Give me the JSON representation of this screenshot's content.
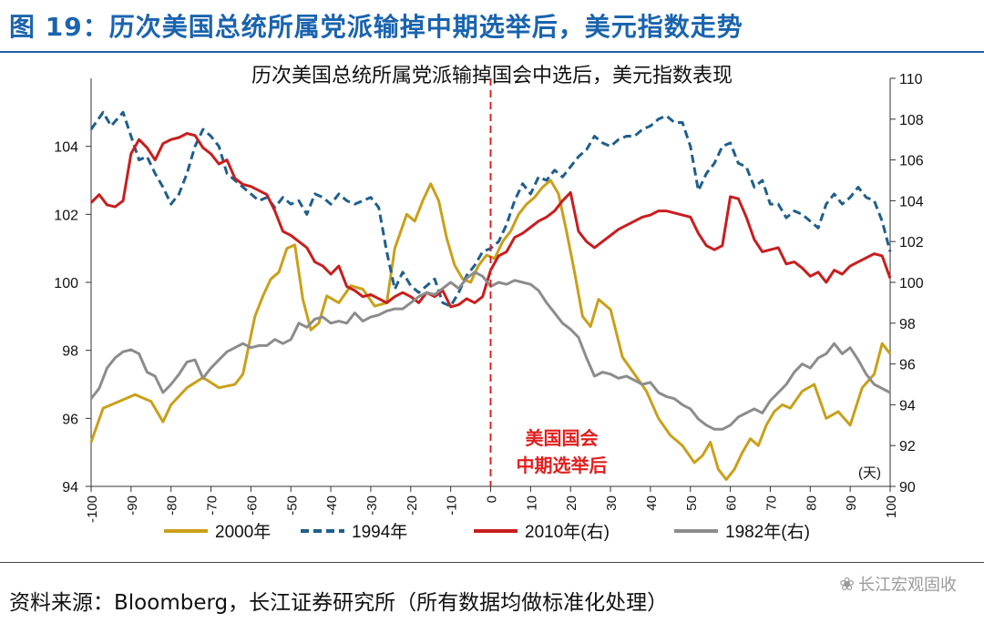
{
  "figure": {
    "label": "图 19：历次美国总统所属党派输掉中期选举后，美元指数走势",
    "source": "资料来源：Bloomberg，长江证券研究所（所有数据均做标准化处理）",
    "watermark": "长江宏观固收",
    "watermark_icon": "wechat-icon"
  },
  "chart_data": {
    "type": "line",
    "title": "历次美国总统所属党派输掉国会中选后，美元指数表现",
    "x_unit": "(天)",
    "xlim": [
      -100,
      100
    ],
    "x_ticks": [
      -100,
      -90,
      -80,
      -70,
      -60,
      -50,
      -40,
      -30,
      -20,
      -10,
      0,
      10,
      20,
      30,
      40,
      50,
      60,
      70,
      80,
      90,
      100
    ],
    "ylim_left": [
      94,
      106
    ],
    "y_ticks_left": [
      94,
      96,
      98,
      100,
      102,
      104
    ],
    "ylim_right": [
      90,
      110
    ],
    "y_ticks_right": [
      90,
      92,
      94,
      96,
      98,
      100,
      102,
      104,
      106,
      108,
      110
    ],
    "annotation": {
      "x": 0,
      "lines": [
        "美国国会",
        "中期选举后"
      ]
    },
    "series": [
      {
        "name": "2000年",
        "axis": "left",
        "color": "#c9a01a",
        "dash": "solid",
        "x": [
          -100,
          -97,
          -93,
          -89,
          -85,
          -82,
          -80,
          -76,
          -72,
          -68,
          -64,
          -62,
          -59,
          -57,
          -55,
          -53,
          -51,
          -49,
          -47,
          -45,
          -43,
          -41,
          -38,
          -35,
          -32,
          -29,
          -26,
          -24,
          -21,
          -19,
          -17,
          -15,
          -13,
          -11,
          -9,
          -7,
          -5,
          -3,
          -1,
          1,
          3,
          5,
          7,
          9,
          11,
          13,
          15,
          17,
          19,
          21,
          23,
          25,
          27,
          30,
          33,
          36,
          39,
          42,
          45,
          48,
          51,
          53,
          55,
          57,
          59,
          61,
          63,
          65,
          67,
          69,
          71,
          73,
          75,
          78,
          81,
          84,
          87,
          90,
          93,
          96,
          98,
          100
        ],
        "y": [
          95.3,
          96.3,
          96.5,
          96.7,
          96.5,
          95.9,
          96.4,
          96.9,
          97.2,
          96.9,
          97.0,
          97.3,
          99.0,
          99.6,
          100.1,
          100.3,
          101.0,
          101.1,
          99.5,
          98.6,
          98.8,
          99.6,
          99.4,
          99.9,
          99.8,
          99.3,
          99.4,
          101.0,
          102.0,
          101.8,
          102.4,
          102.9,
          102.4,
          101.3,
          100.5,
          100.1,
          100.0,
          100.5,
          100.8,
          100.7,
          101.2,
          101.5,
          102.0,
          102.3,
          102.5,
          102.8,
          103.0,
          102.6,
          101.5,
          100.3,
          99.0,
          98.7,
          99.5,
          99.2,
          97.8,
          97.3,
          96.8,
          96.0,
          95.5,
          95.2,
          94.7,
          94.9,
          95.3,
          94.5,
          94.2,
          94.5,
          95.0,
          95.4,
          95.2,
          95.8,
          96.2,
          96.4,
          96.3,
          96.8,
          97.0,
          96.0,
          96.2,
          95.8,
          96.9,
          97.3,
          98.2,
          97.9
        ]
      },
      {
        "name": "1994年",
        "axis": "left",
        "color": "#1f5f8b",
        "dash": "dashed",
        "x": [
          -100,
          -97,
          -95,
          -92,
          -90,
          -88,
          -86,
          -84,
          -82,
          -80,
          -78,
          -76,
          -74,
          -72,
          -70,
          -68,
          -66,
          -64,
          -62,
          -60,
          -58,
          -56,
          -54,
          -52,
          -50,
          -48,
          -46,
          -44,
          -42,
          -40,
          -38,
          -36,
          -34,
          -32,
          -30,
          -28,
          -26,
          -24,
          -22,
          -20,
          -18,
          -16,
          -14,
          -12,
          -10,
          -8,
          -6,
          -4,
          -2,
          0,
          2,
          4,
          6,
          8,
          10,
          12,
          14,
          16,
          18,
          20,
          22,
          24,
          26,
          28,
          30,
          32,
          34,
          36,
          38,
          40,
          42,
          44,
          46,
          48,
          50,
          52,
          54,
          56,
          58,
          60,
          62,
          64,
          66,
          68,
          70,
          72,
          74,
          76,
          78,
          80,
          82,
          84,
          86,
          88,
          90,
          92,
          94,
          96,
          98,
          100
        ],
        "y": [
          104.5,
          105.0,
          104.6,
          105.0,
          104.3,
          103.6,
          103.7,
          103.2,
          102.8,
          102.3,
          102.6,
          103.2,
          104.0,
          104.5,
          104.3,
          104.0,
          103.2,
          103.0,
          102.8,
          102.6,
          102.4,
          102.5,
          102.2,
          102.5,
          102.3,
          102.4,
          102.0,
          102.6,
          102.5,
          102.3,
          102.6,
          102.4,
          102.3,
          102.4,
          102.5,
          102.2,
          100.9,
          99.8,
          100.3,
          99.9,
          99.7,
          99.9,
          100.1,
          99.4,
          99.3,
          99.7,
          100.2,
          100.5,
          100.9,
          101.0,
          101.2,
          101.7,
          102.4,
          102.9,
          102.6,
          103.1,
          103.0,
          103.3,
          103.1,
          103.4,
          103.7,
          103.9,
          104.3,
          104.1,
          104.0,
          104.2,
          104.3,
          104.3,
          104.5,
          104.6,
          104.8,
          104.9,
          104.7,
          104.7,
          104.0,
          102.7,
          103.2,
          103.5,
          104.0,
          104.1,
          103.5,
          103.4,
          102.8,
          103.0,
          102.3,
          102.3,
          101.9,
          102.1,
          102.0,
          101.8,
          101.6,
          102.3,
          102.6,
          102.3,
          102.5,
          102.8,
          102.5,
          102.4,
          101.8,
          100.9
        ]
      },
      {
        "name": "2010年(右)",
        "axis": "right",
        "color": "#c81e1e",
        "dash": "solid",
        "x": [
          -100,
          -98,
          -96,
          -94,
          -92,
          -90,
          -88,
          -86,
          -84,
          -82,
          -80,
          -78,
          -76,
          -74,
          -72,
          -70,
          -68,
          -66,
          -64,
          -62,
          -60,
          -58,
          -56,
          -54,
          -52,
          -50,
          -48,
          -46,
          -44,
          -42,
          -40,
          -38,
          -36,
          -34,
          -32,
          -30,
          -28,
          -26,
          -24,
          -22,
          -20,
          -18,
          -16,
          -14,
          -12,
          -10,
          -8,
          -6,
          -4,
          -2,
          0,
          2,
          4,
          6,
          8,
          10,
          12,
          14,
          16,
          18,
          20,
          22,
          24,
          26,
          28,
          30,
          32,
          34,
          36,
          38,
          40,
          42,
          44,
          46,
          48,
          50,
          52,
          54,
          56,
          58,
          60,
          62,
          64,
          66,
          68,
          70,
          72,
          74,
          76,
          78,
          80,
          82,
          84,
          86,
          88,
          90,
          92,
          94,
          96,
          98,
          100
        ],
        "y": [
          103.9,
          104.3,
          103.8,
          103.7,
          104.0,
          106.3,
          107.0,
          106.6,
          106.0,
          106.8,
          107.0,
          107.1,
          107.3,
          107.2,
          106.6,
          106.3,
          105.8,
          106.0,
          105.1,
          104.8,
          104.7,
          104.5,
          104.3,
          103.5,
          102.5,
          102.3,
          102.0,
          101.7,
          101.0,
          100.8,
          100.4,
          100.8,
          99.8,
          99.6,
          99.3,
          99.4,
          99.2,
          99.0,
          99.3,
          99.5,
          99.3,
          99.0,
          99.5,
          99.3,
          99.6,
          98.8,
          98.9,
          99.2,
          99.0,
          99.3,
          100.6,
          101.3,
          101.5,
          102.2,
          102.4,
          102.7,
          103.0,
          103.2,
          103.5,
          104.0,
          104.4,
          102.5,
          102.0,
          101.7,
          102.0,
          102.3,
          102.6,
          102.8,
          103.0,
          103.2,
          103.3,
          103.5,
          103.5,
          103.4,
          103.3,
          103.2,
          102.4,
          101.8,
          101.6,
          101.8,
          104.2,
          104.1,
          103.2,
          102.1,
          101.5,
          101.6,
          101.7,
          100.9,
          101.0,
          100.7,
          100.3,
          100.5,
          100.0,
          100.6,
          100.4,
          100.8,
          101.0,
          101.2,
          101.4,
          101.3,
          100.2
        ]
      },
      {
        "name": "1982年(右)",
        "axis": "right",
        "color": "#8c8c8c",
        "dash": "solid",
        "x": [
          -100,
          -98,
          -96,
          -94,
          -92,
          -90,
          -88,
          -86,
          -84,
          -82,
          -80,
          -78,
          -76,
          -74,
          -72,
          -70,
          -68,
          -66,
          -64,
          -62,
          -60,
          -58,
          -56,
          -54,
          -52,
          -50,
          -48,
          -46,
          -44,
          -42,
          -40,
          -38,
          -36,
          -34,
          -32,
          -30,
          -28,
          -26,
          -24,
          -22,
          -20,
          -18,
          -16,
          -14,
          -12,
          -10,
          -8,
          -6,
          -4,
          -2,
          0,
          2,
          4,
          6,
          8,
          10,
          12,
          14,
          16,
          18,
          20,
          22,
          24,
          26,
          28,
          30,
          32,
          34,
          36,
          38,
          40,
          42,
          44,
          46,
          48,
          50,
          52,
          54,
          56,
          58,
          60,
          62,
          64,
          66,
          68,
          70,
          72,
          74,
          76,
          78,
          80,
          82,
          84,
          86,
          88,
          90,
          92,
          94,
          96,
          98,
          100
        ],
        "y": [
          94.3,
          94.8,
          95.8,
          96.3,
          96.6,
          96.7,
          96.5,
          95.6,
          95.4,
          94.6,
          95.0,
          95.5,
          96.1,
          96.2,
          95.3,
          95.8,
          96.2,
          96.6,
          96.8,
          97.0,
          96.8,
          96.9,
          96.9,
          97.2,
          97.0,
          97.2,
          98.0,
          97.8,
          98.2,
          98.3,
          98.0,
          98.1,
          98.0,
          98.5,
          98.1,
          98.3,
          98.4,
          98.6,
          98.7,
          98.7,
          99.0,
          99.3,
          99.5,
          99.4,
          99.7,
          100.0,
          99.7,
          100.2,
          100.5,
          100.3,
          99.8,
          100.0,
          99.9,
          100.1,
          100.0,
          99.9,
          99.6,
          99.0,
          98.5,
          98.0,
          97.7,
          97.3,
          96.3,
          95.4,
          95.6,
          95.5,
          95.3,
          95.4,
          95.2,
          95.0,
          95.1,
          94.6,
          94.4,
          94.3,
          94.0,
          93.8,
          93.3,
          93.0,
          92.8,
          92.8,
          93.0,
          93.4,
          93.6,
          93.8,
          93.6,
          94.2,
          94.6,
          95.0,
          95.6,
          96.0,
          95.8,
          96.3,
          96.5,
          97.0,
          96.5,
          96.8,
          96.2,
          95.5,
          95.0,
          94.8,
          94.6
        ]
      }
    ]
  }
}
